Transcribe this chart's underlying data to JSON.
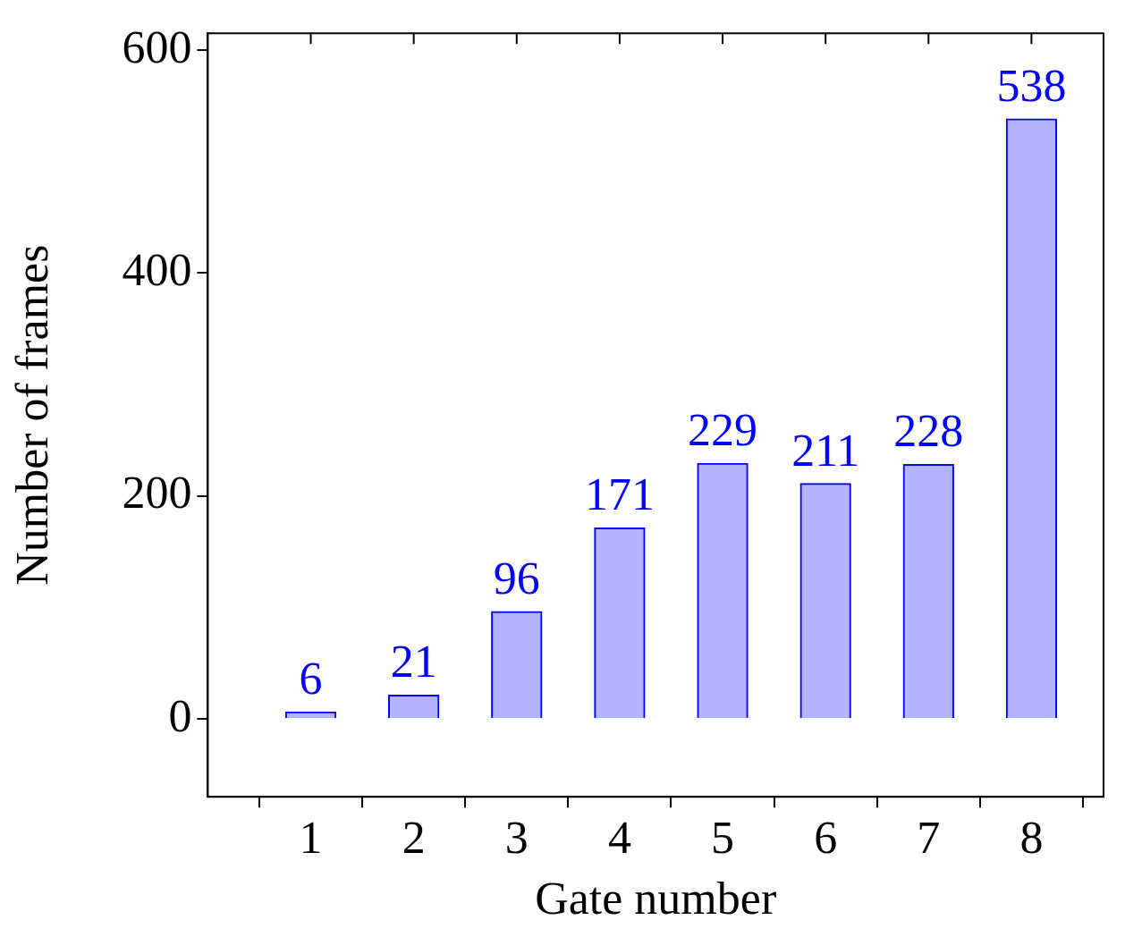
{
  "chart_data": {
    "type": "bar",
    "xlabel": "Gate number",
    "ylabel": "Number of frames",
    "x": [
      1,
      2,
      3,
      4,
      5,
      6,
      7,
      8
    ],
    "values": [
      6,
      21,
      96,
      171,
      229,
      211,
      228,
      538
    ],
    "color": "#b3b3ff",
    "xlim": [
      0,
      8.7
    ],
    "xticks": [
      1,
      2,
      3,
      4,
      5,
      6,
      7,
      8
    ],
    "ylim": [
      -70,
      615
    ],
    "yticks": [
      0,
      200,
      400,
      600
    ],
    "data_labels": true,
    "grid": false,
    "legend": false
  }
}
